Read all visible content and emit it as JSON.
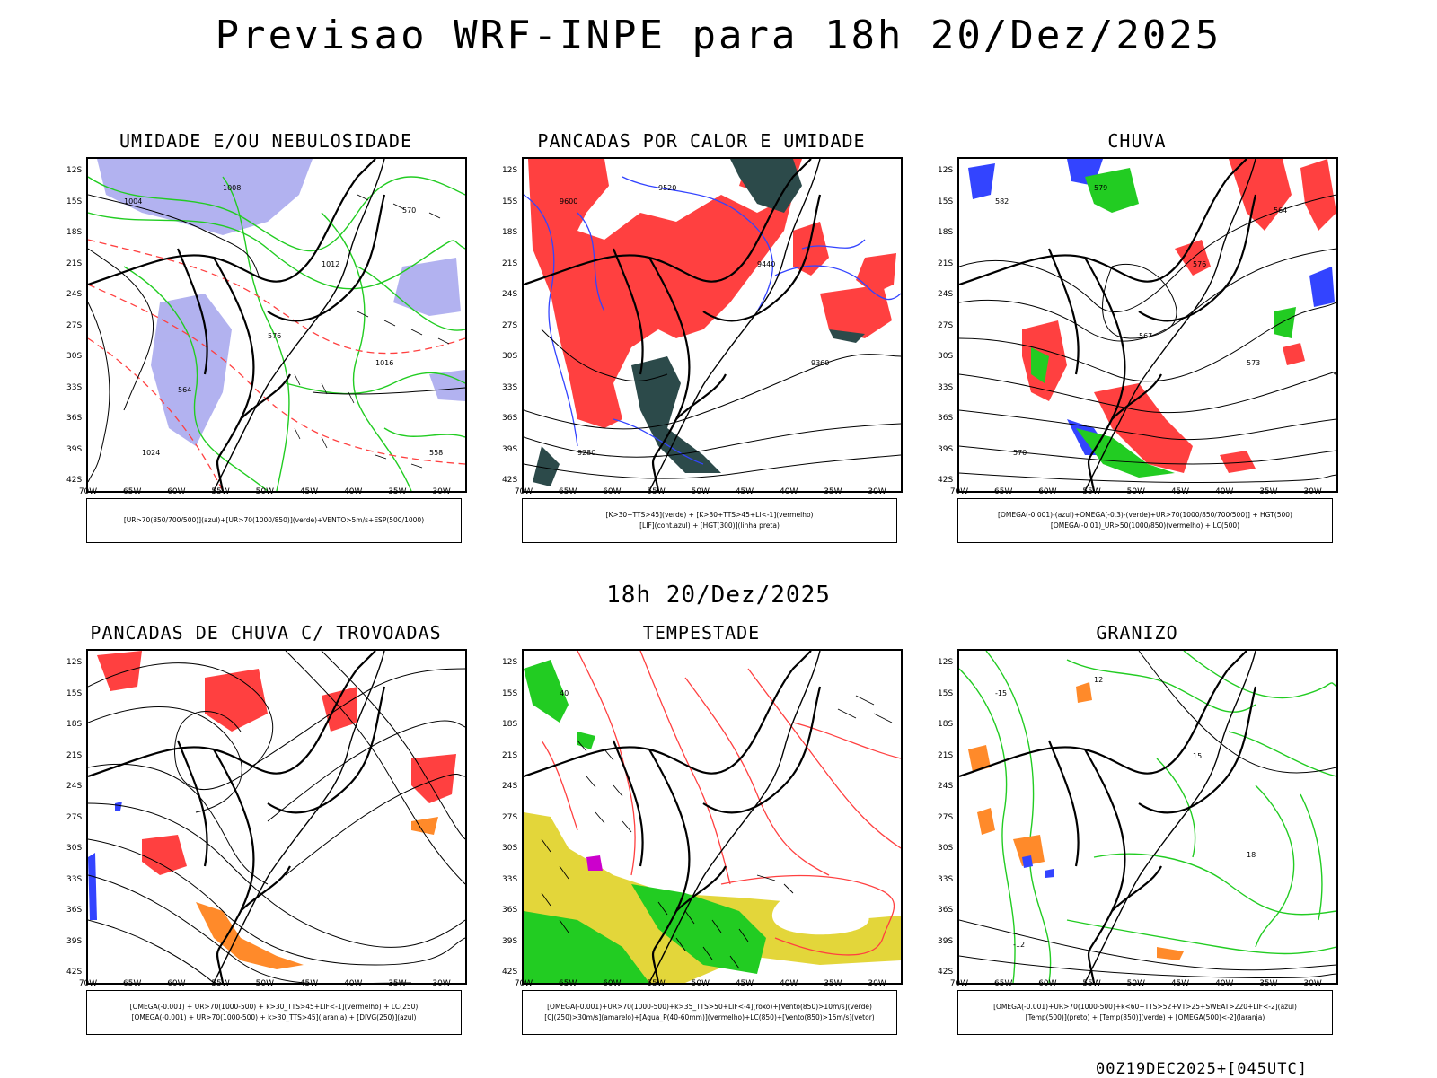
{
  "header": {
    "title": "Previsao WRF-INPE  para 18h 20/Dez/2025"
  },
  "middle": {
    "title": "18h 20/Dez/2025"
  },
  "footer": {
    "run_code": "00Z19DEC2025+[045UTC]"
  },
  "axes": {
    "lat_labels": [
      "12S",
      "15S",
      "18S",
      "21S",
      "24S",
      "27S",
      "30S",
      "33S",
      "36S",
      "39S",
      "42S"
    ],
    "lon_labels": [
      "70W",
      "65W",
      "60W",
      "55W",
      "50W",
      "45W",
      "40W",
      "35W",
      "30W"
    ]
  },
  "panels": [
    {
      "title": "UMIDADE E/OU NEBULOSIDADE",
      "legend": [
        "[UR>70(850/700/500)](azul)+[UR>70(1000/850)](verde)+VENTO>5m/s+ESP(500/1000)"
      ],
      "contour_labels": [
        "1004",
        "1008",
        "1012",
        "1016",
        "1024",
        "576",
        "570",
        "564",
        "558"
      ]
    },
    {
      "title": "PANCADAS POR CALOR E UMIDADE",
      "legend": [
        "[K>30+TTS>45](verde) + [K>30+TTS>45+LI<-1](vermelho)",
        "[LIF](cont.azul) + [HGT(300)](linha preta)"
      ],
      "contour_labels": [
        "9600",
        "9520",
        "9440",
        "9360",
        "9280"
      ]
    },
    {
      "title": "CHUVA",
      "legend": [
        "[OMEGA(-0.001)-(azul)+OMEGA(-0.3)-(verde)+UR>70(1000/850/700/500)] + HGT(500)",
        "[OMEGA(-0.01)_UR>50(1000/850)(vermelho) + LC(500)"
      ],
      "contour_labels": [
        "582",
        "579",
        "576",
        "573",
        "570",
        "567",
        "564"
      ]
    },
    {
      "title": "PANCADAS DE CHUVA C/ TROVOADAS",
      "legend": [
        "[OMEGA(-0.001) + UR>70(1000-500) + k>30_TTS>45+LIF<-1](vermelho) + LC(250)",
        "[OMEGA(-0.001) + UR>70(1000-500) + k>30_TTS>45](laranja) + [DIVG(250)](azul)"
      ],
      "contour_labels": []
    },
    {
      "title": "TEMPESTADE",
      "legend": [
        "[OMEGA(-0.001)+UR>70(1000-500)+k>35_TTS>50+LIF<-4](roxo)+[Vento(850)>10m/s](verde)",
        "[CJ(250)>30m/s](amarelo)+[Agua_P(40-60mm)](vermelho)+LC(850)+[Vento(850)>15m/s](vetor)"
      ],
      "contour_labels": [
        "40"
      ]
    },
    {
      "title": "GRANIZO",
      "legend": [
        "[OMEGA(-0.001)+UR>70(1000-500)+k<60+TTS>52+VT>25+SWEAT>220+LIF<-2](azul)",
        "[Temp(500)](preto) + [Temp(850)](verde) + [OMEGA(500)<-2](laranja)"
      ],
      "contour_labels": [
        "-15",
        "12",
        "15",
        "18",
        "-12"
      ]
    }
  ],
  "colors": {
    "red": "#ff4040",
    "green": "#22cc22",
    "blue": "#3344ff",
    "lavender": "#aaaaee",
    "teal": "#2c4a4a",
    "yellow": "#e3d63a",
    "orange": "#ff8a2a",
    "purple": "#cc00cc"
  }
}
